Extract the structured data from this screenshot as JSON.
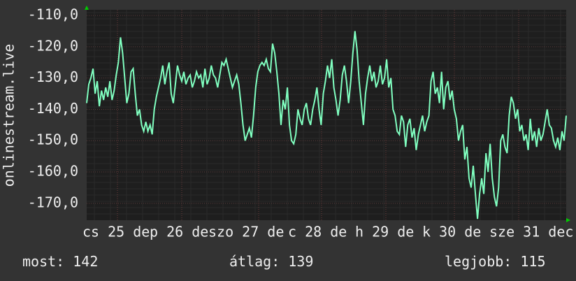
{
  "chart_data": {
    "type": "line",
    "y_label": "onlinestream.live",
    "x_labels": [
      "cs 25 de",
      "p 26 de",
      "szo 27 de",
      "c 28 de",
      "h 29 de",
      "k 30 de",
      "sze 31 dec"
    ],
    "series": [
      {
        "name": "onlinestream.live",
        "color": "#80ffc0",
        "values": [
          -138,
          -132,
          -130,
          -127,
          -135,
          -131,
          -139,
          -134,
          -137,
          -133,
          -136,
          -131,
          -137,
          -134,
          -129,
          -125,
          -117,
          -122,
          -130,
          -138,
          -135,
          -128,
          -127,
          -135,
          -142,
          -140,
          -145,
          -147,
          -144,
          -147,
          -145,
          -148,
          -140,
          -136,
          -133,
          -130,
          -126,
          -132,
          -128,
          -125,
          -135,
          -138,
          -132,
          -126,
          -129,
          -131,
          -128,
          -132,
          -130,
          -129,
          -133,
          -131,
          -128,
          -130,
          -129,
          -133,
          -127,
          -132,
          -130,
          -126,
          -129,
          -130,
          -133,
          -129,
          -125,
          -126,
          -124,
          -127,
          -130,
          -133,
          -131,
          -129,
          -132,
          -138,
          -145,
          -150,
          -148,
          -146,
          -149,
          -142,
          -133,
          -128,
          -126,
          -125,
          -126,
          -124,
          -127,
          -128,
          -119,
          -122,
          -128,
          -135,
          -145,
          -137,
          -140,
          -133,
          -145,
          -150,
          -151,
          -148,
          -140,
          -143,
          -145,
          -140,
          -138,
          -143,
          -145,
          -140,
          -137,
          -133,
          -140,
          -145,
          -135,
          -131,
          -126,
          -130,
          -124,
          -133,
          -137,
          -142,
          -137,
          -129,
          -126,
          -131,
          -138,
          -131,
          -122,
          -115,
          -121,
          -131,
          -138,
          -145,
          -135,
          -130,
          -126,
          -131,
          -128,
          -133,
          -131,
          -126,
          -132,
          -130,
          -124,
          -133,
          -130,
          -140,
          -142,
          -147,
          -148,
          -142,
          -144,
          -152,
          -145,
          -143,
          -149,
          -146,
          -153,
          -148,
          -145,
          -142,
          -147,
          -144,
          -142,
          -131,
          -128,
          -135,
          -133,
          -138,
          -128,
          -140,
          -133,
          -131,
          -137,
          -134,
          -140,
          -143,
          -150,
          -147,
          -145,
          -156,
          -152,
          -162,
          -165,
          -158,
          -167,
          -175,
          -167,
          -162,
          -167,
          -154,
          -160,
          -151,
          -162,
          -168,
          -171,
          -165,
          -150,
          -148,
          -152,
          -154,
          -142,
          -136,
          -138,
          -143,
          -140,
          -147,
          -145,
          -150,
          -148,
          -153,
          -143,
          -150,
          -147,
          -152,
          -146,
          -150,
          -148,
          -144,
          -140,
          -145,
          -146,
          -150,
          -152,
          -149,
          -153,
          -147,
          -150,
          -142
        ]
      }
    ],
    "ylim": [
      -175.4,
      -108.2
    ],
    "yticks": [
      {
        "value": -110,
        "label": "-110,0"
      },
      {
        "value": -120,
        "label": "-120,0"
      },
      {
        "value": -130,
        "label": "-130,0"
      },
      {
        "value": -140,
        "label": "-140,0"
      },
      {
        "value": -150,
        "label": "-150,0"
      },
      {
        "value": -160,
        "label": "-160,0"
      },
      {
        "value": -170,
        "label": "-170,0"
      }
    ],
    "grid": true,
    "stats": [
      {
        "name": "most:",
        "value": 142
      },
      {
        "name": "átlag:",
        "value": 139
      },
      {
        "name": "legjobb:",
        "value": 115
      }
    ]
  }
}
